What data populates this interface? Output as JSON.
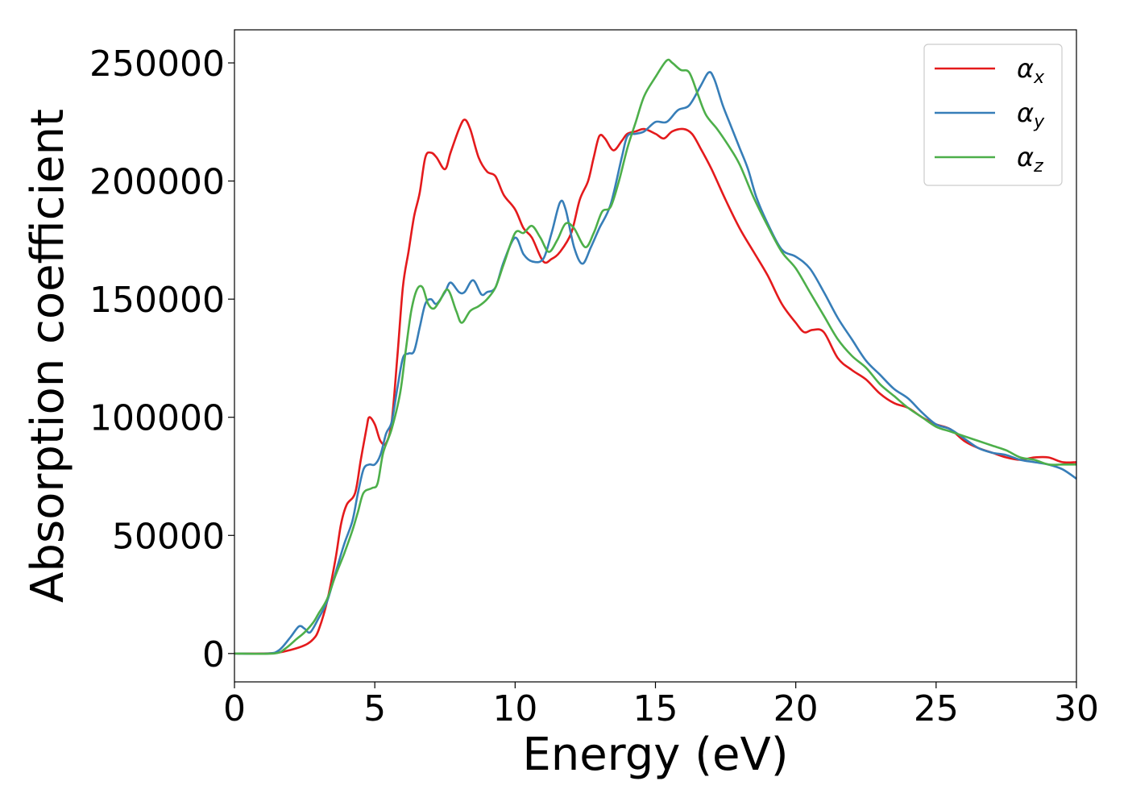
{
  "chart_data": {
    "type": "line",
    "xlabel": "Energy (eV)",
    "ylabel": "Absorption coefficient",
    "xlim": [
      0,
      30
    ],
    "ylim": [
      -12000,
      264000
    ],
    "x_ticks": [
      0,
      5,
      10,
      15,
      20,
      25,
      30
    ],
    "y_ticks": [
      0,
      50000,
      100000,
      150000,
      200000,
      250000
    ],
    "grid": false,
    "legend_position": "top-right",
    "series": [
      {
        "name": "αx",
        "legend_symbol": "α",
        "legend_subscript": "x",
        "color": "#e41a1c",
        "points": [
          [
            0,
            0
          ],
          [
            1,
            0
          ],
          [
            1.5,
            300
          ],
          [
            2,
            1500
          ],
          [
            2.5,
            3500
          ],
          [
            2.8,
            6000
          ],
          [
            3.0,
            10000
          ],
          [
            3.3,
            22000
          ],
          [
            3.6,
            40000
          ],
          [
            3.8,
            55000
          ],
          [
            4.0,
            63000
          ],
          [
            4.3,
            68000
          ],
          [
            4.5,
            82000
          ],
          [
            4.7,
            95000
          ],
          [
            4.8,
            100000
          ],
          [
            5.0,
            97000
          ],
          [
            5.2,
            90000
          ],
          [
            5.4,
            89000
          ],
          [
            5.6,
            98000
          ],
          [
            5.8,
            125000
          ],
          [
            6.0,
            155000
          ],
          [
            6.2,
            170000
          ],
          [
            6.4,
            185000
          ],
          [
            6.6,
            195000
          ],
          [
            6.8,
            210000
          ],
          [
            7.0,
            212000
          ],
          [
            7.2,
            210000
          ],
          [
            7.5,
            205000
          ],
          [
            7.7,
            212000
          ],
          [
            8.0,
            222000
          ],
          [
            8.2,
            226000
          ],
          [
            8.4,
            222000
          ],
          [
            8.7,
            210000
          ],
          [
            9.0,
            204000
          ],
          [
            9.3,
            202000
          ],
          [
            9.6,
            194000
          ],
          [
            10.0,
            188000
          ],
          [
            10.3,
            180000
          ],
          [
            10.6,
            176000
          ],
          [
            11.0,
            166000
          ],
          [
            11.3,
            167000
          ],
          [
            11.6,
            170000
          ],
          [
            12.0,
            178000
          ],
          [
            12.3,
            192000
          ],
          [
            12.6,
            200000
          ],
          [
            12.8,
            210000
          ],
          [
            13.0,
            219000
          ],
          [
            13.2,
            218000
          ],
          [
            13.5,
            213000
          ],
          [
            13.8,
            217000
          ],
          [
            14.0,
            220000
          ],
          [
            14.3,
            221000
          ],
          [
            14.6,
            222000
          ],
          [
            15.0,
            220000
          ],
          [
            15.3,
            218000
          ],
          [
            15.6,
            221000
          ],
          [
            16.0,
            222000
          ],
          [
            16.3,
            220000
          ],
          [
            16.6,
            214000
          ],
          [
            17.0,
            205000
          ],
          [
            17.5,
            192000
          ],
          [
            18.0,
            180000
          ],
          [
            18.5,
            170000
          ],
          [
            19.0,
            160000
          ],
          [
            19.5,
            148000
          ],
          [
            20.0,
            140000
          ],
          [
            20.3,
            136000
          ],
          [
            20.6,
            137000
          ],
          [
            21.0,
            136000
          ],
          [
            21.5,
            125000
          ],
          [
            22.0,
            120000
          ],
          [
            22.5,
            116000
          ],
          [
            23.0,
            110000
          ],
          [
            23.5,
            106000
          ],
          [
            24.0,
            104000
          ],
          [
            24.5,
            100000
          ],
          [
            25.0,
            97000
          ],
          [
            25.5,
            95000
          ],
          [
            26.0,
            90000
          ],
          [
            26.5,
            87000
          ],
          [
            27.0,
            85000
          ],
          [
            27.5,
            83000
          ],
          [
            28.0,
            82000
          ],
          [
            28.5,
            83000
          ],
          [
            29.0,
            83000
          ],
          [
            29.5,
            81000
          ],
          [
            30.0,
            81000
          ]
        ]
      },
      {
        "name": "αy",
        "legend_symbol": "α",
        "legend_subscript": "y",
        "color": "#377eb8",
        "points": [
          [
            0,
            0
          ],
          [
            1.2,
            0
          ],
          [
            1.6,
            1500
          ],
          [
            2.0,
            7000
          ],
          [
            2.3,
            11500
          ],
          [
            2.5,
            10500
          ],
          [
            2.7,
            9000
          ],
          [
            3.0,
            15000
          ],
          [
            3.3,
            22000
          ],
          [
            3.6,
            34000
          ],
          [
            3.9,
            46000
          ],
          [
            4.2,
            56000
          ],
          [
            4.4,
            68000
          ],
          [
            4.6,
            78000
          ],
          [
            4.8,
            80000
          ],
          [
            5.0,
            80000
          ],
          [
            5.2,
            84000
          ],
          [
            5.4,
            93000
          ],
          [
            5.6,
            98000
          ],
          [
            5.8,
            112000
          ],
          [
            6.0,
            125000
          ],
          [
            6.2,
            127000
          ],
          [
            6.4,
            128000
          ],
          [
            6.6,
            138000
          ],
          [
            6.8,
            148000
          ],
          [
            7.0,
            150000
          ],
          [
            7.2,
            148000
          ],
          [
            7.5,
            153000
          ],
          [
            7.7,
            157000
          ],
          [
            8.0,
            153000
          ],
          [
            8.2,
            153000
          ],
          [
            8.5,
            158000
          ],
          [
            8.8,
            152000
          ],
          [
            9.0,
            153000
          ],
          [
            9.3,
            155000
          ],
          [
            9.6,
            166000
          ],
          [
            10.0,
            176000
          ],
          [
            10.3,
            169000
          ],
          [
            10.6,
            166000
          ],
          [
            11.0,
            167000
          ],
          [
            11.3,
            178000
          ],
          [
            11.6,
            191000
          ],
          [
            11.8,
            188000
          ],
          [
            12.1,
            172000
          ],
          [
            12.4,
            165000
          ],
          [
            12.7,
            172000
          ],
          [
            13.0,
            180000
          ],
          [
            13.4,
            190000
          ],
          [
            13.8,
            210000
          ],
          [
            14.0,
            219000
          ],
          [
            14.3,
            220000
          ],
          [
            14.6,
            221000
          ],
          [
            15.0,
            225000
          ],
          [
            15.4,
            225000
          ],
          [
            15.8,
            230000
          ],
          [
            16.2,
            232000
          ],
          [
            16.6,
            240000
          ],
          [
            16.9,
            246000
          ],
          [
            17.1,
            243000
          ],
          [
            17.4,
            232000
          ],
          [
            17.7,
            223000
          ],
          [
            18.0,
            214000
          ],
          [
            18.3,
            205000
          ],
          [
            18.6,
            193000
          ],
          [
            19.0,
            182000
          ],
          [
            19.5,
            171000
          ],
          [
            20.0,
            168000
          ],
          [
            20.5,
            163000
          ],
          [
            21.0,
            153000
          ],
          [
            21.5,
            142000
          ],
          [
            22.0,
            133000
          ],
          [
            22.5,
            124000
          ],
          [
            23.0,
            118000
          ],
          [
            23.5,
            112000
          ],
          [
            24.0,
            108000
          ],
          [
            24.5,
            102000
          ],
          [
            25.0,
            97000
          ],
          [
            25.5,
            95000
          ],
          [
            26.0,
            91000
          ],
          [
            26.5,
            87000
          ],
          [
            27.0,
            85000
          ],
          [
            27.5,
            84000
          ],
          [
            28.0,
            82000
          ],
          [
            28.5,
            81000
          ],
          [
            29.0,
            80000
          ],
          [
            29.5,
            78000
          ],
          [
            30.0,
            74000
          ]
        ]
      },
      {
        "name": "αz",
        "legend_symbol": "α",
        "legend_subscript": "z",
        "color": "#4daf4a",
        "points": [
          [
            0,
            0
          ],
          [
            1.4,
            0
          ],
          [
            1.8,
            2000
          ],
          [
            2.2,
            6000
          ],
          [
            2.5,
            9000
          ],
          [
            2.8,
            13000
          ],
          [
            3.0,
            17000
          ],
          [
            3.3,
            23000
          ],
          [
            3.6,
            33000
          ],
          [
            3.9,
            42000
          ],
          [
            4.2,
            52000
          ],
          [
            4.4,
            60000
          ],
          [
            4.6,
            68000
          ],
          [
            4.9,
            70000
          ],
          [
            5.1,
            72000
          ],
          [
            5.3,
            85000
          ],
          [
            5.6,
            95000
          ],
          [
            5.9,
            110000
          ],
          [
            6.1,
            128000
          ],
          [
            6.3,
            145000
          ],
          [
            6.5,
            154000
          ],
          [
            6.7,
            155000
          ],
          [
            6.9,
            148000
          ],
          [
            7.1,
            146000
          ],
          [
            7.3,
            149000
          ],
          [
            7.6,
            154000
          ],
          [
            7.9,
            145000
          ],
          [
            8.1,
            140000
          ],
          [
            8.4,
            145000
          ],
          [
            8.7,
            147000
          ],
          [
            9.0,
            150000
          ],
          [
            9.3,
            155000
          ],
          [
            9.6,
            165000
          ],
          [
            10.0,
            178000
          ],
          [
            10.3,
            178000
          ],
          [
            10.6,
            181000
          ],
          [
            10.9,
            176000
          ],
          [
            11.2,
            170000
          ],
          [
            11.5,
            175000
          ],
          [
            11.8,
            182000
          ],
          [
            12.1,
            180000
          ],
          [
            12.5,
            172000
          ],
          [
            12.8,
            178000
          ],
          [
            13.1,
            187000
          ],
          [
            13.4,
            189000
          ],
          [
            13.7,
            200000
          ],
          [
            14.0,
            214000
          ],
          [
            14.3,
            225000
          ],
          [
            14.6,
            236000
          ],
          [
            15.0,
            244000
          ],
          [
            15.4,
            251000
          ],
          [
            15.6,
            250000
          ],
          [
            15.9,
            247000
          ],
          [
            16.2,
            246000
          ],
          [
            16.5,
            237000
          ],
          [
            16.8,
            228000
          ],
          [
            17.2,
            222000
          ],
          [
            17.6,
            215000
          ],
          [
            18.0,
            207000
          ],
          [
            18.5,
            193000
          ],
          [
            19.0,
            181000
          ],
          [
            19.5,
            170000
          ],
          [
            20.0,
            163000
          ],
          [
            20.5,
            153000
          ],
          [
            21.0,
            143000
          ],
          [
            21.5,
            133000
          ],
          [
            22.0,
            126000
          ],
          [
            22.5,
            121000
          ],
          [
            23.0,
            114000
          ],
          [
            23.5,
            109000
          ],
          [
            24.0,
            104000
          ],
          [
            24.5,
            100000
          ],
          [
            25.0,
            96000
          ],
          [
            25.5,
            94000
          ],
          [
            26.0,
            92000
          ],
          [
            26.5,
            90000
          ],
          [
            27.0,
            88000
          ],
          [
            27.5,
            86000
          ],
          [
            28.0,
            83000
          ],
          [
            28.5,
            82000
          ],
          [
            29.0,
            80000
          ],
          [
            29.5,
            80000
          ],
          [
            30.0,
            80000
          ]
        ]
      }
    ]
  }
}
